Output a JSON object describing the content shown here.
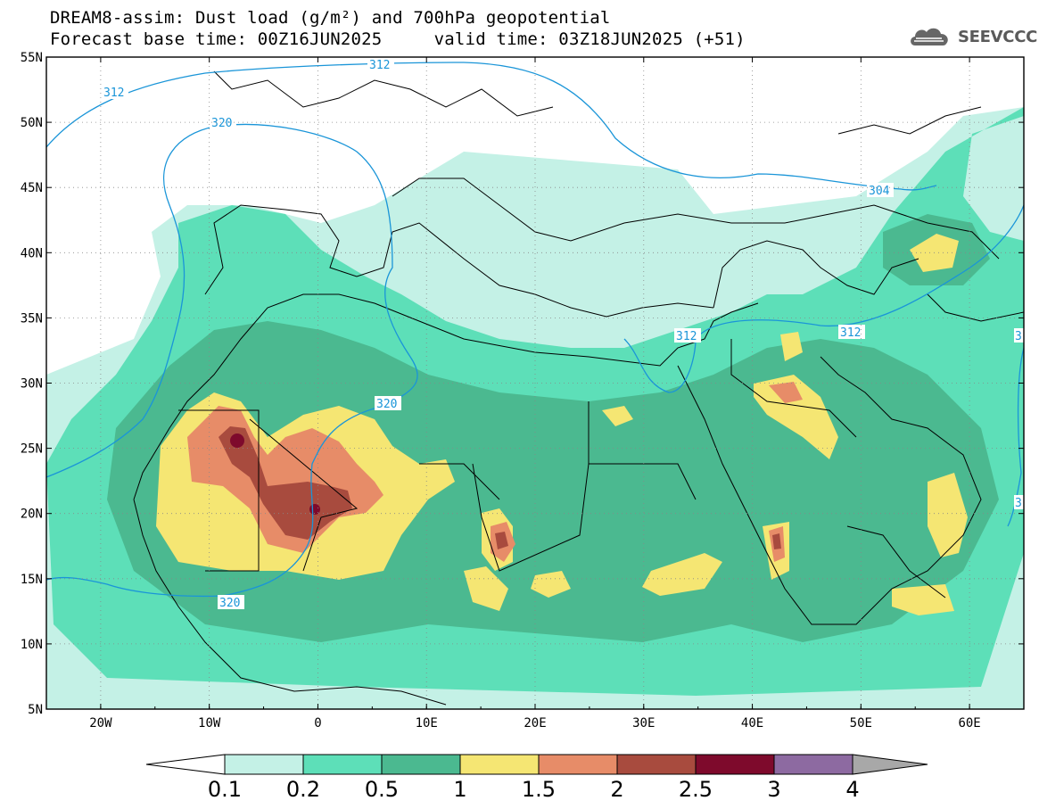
{
  "title": {
    "line1": "DREAM8-assim: Dust load (g/m²) and 700hPa geopotential",
    "line2": "Forecast base time: 00Z16JUN2025     valid time: 03Z18JUN2025 (+51)"
  },
  "logo": {
    "text": "SEEVCCC",
    "icon": "cloud-icon"
  },
  "axes": {
    "lat_labels": [
      "55N",
      "50N",
      "45N",
      "40N",
      "35N",
      "30N",
      "25N",
      "20N",
      "15N",
      "10N",
      "5N"
    ],
    "lon_labels": [
      "20W",
      "10W",
      "0",
      "10E",
      "20E",
      "30E",
      "40E",
      "50E",
      "60E"
    ]
  },
  "contours": {
    "labels": [
      "312",
      "312",
      "320",
      "304",
      "312",
      "312",
      "320",
      "320",
      "3",
      "3"
    ]
  },
  "colorbar": {
    "labels": [
      "0.1",
      "0.2",
      "0.5",
      "1",
      "1.5",
      "2",
      "2.5",
      "3",
      "4"
    ],
    "colors": [
      "#c4f1e6",
      "#5ddfb8",
      "#4bb990",
      "#f5e673",
      "#e78c68",
      "#a84b3e",
      "#7e0a2c",
      "#8d6aa1",
      "#a8a8a8"
    ]
  },
  "colors": {
    "contour_line": "#1a95d8",
    "dust_0_1": "#c4f1e6",
    "dust_0_2": "#5ddfb8",
    "dust_0_5": "#4bb990",
    "dust_1": "#f5e673",
    "dust_1_5": "#e78c68",
    "dust_2": "#a84b3e",
    "dust_2_5": "#7e0a2c"
  }
}
